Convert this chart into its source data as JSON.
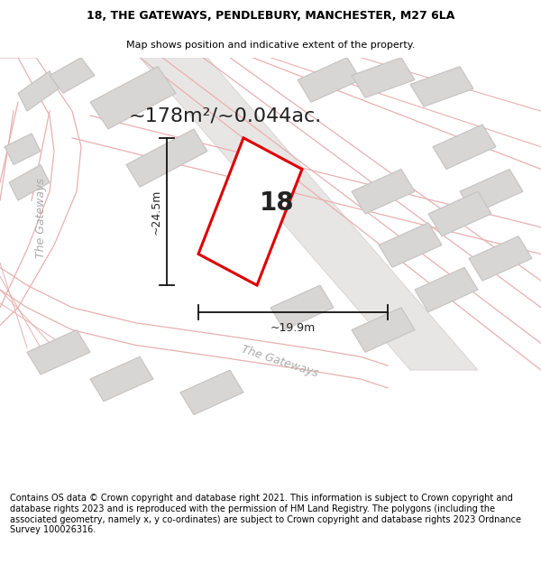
{
  "title": "18, THE GATEWAYS, PENDLEBURY, MANCHESTER, M27 6LA",
  "subtitle": "Map shows position and indicative extent of the property.",
  "area_label": "~178m²/~0.044ac.",
  "dim_h": "~24.5m",
  "dim_w": "~19.9m",
  "plot_number": "18",
  "footer": "Contains OS data © Crown copyright and database right 2021. This information is subject to Crown copyright and database rights 2023 and is reproduced with the permission of HM Land Registry. The polygons (including the associated geometry, namely x, y co-ordinates) are subject to Crown copyright and database rights 2023 Ordnance Survey 100026316.",
  "bg_color": "#ffffff",
  "map_bg": "#f7f5f5",
  "road_outline_color": "#e8b0b0",
  "road_fill_color": "#f5eded",
  "building_color": "#d8d5d5",
  "building_edge": "#c5c2c2",
  "plot_color": "#dd0000",
  "plot_fill": "#ffffff",
  "dim_line_color": "#111111",
  "text_color": "#222222",
  "road_label_color": "#aaaaaa",
  "title_fontsize": 9.0,
  "subtitle_fontsize": 8.0,
  "footer_fontsize": 7.0,
  "area_fontsize": 16,
  "dim_fontsize": 9,
  "plot_label_fontsize": 20,
  "road_label_fontsize": 9
}
